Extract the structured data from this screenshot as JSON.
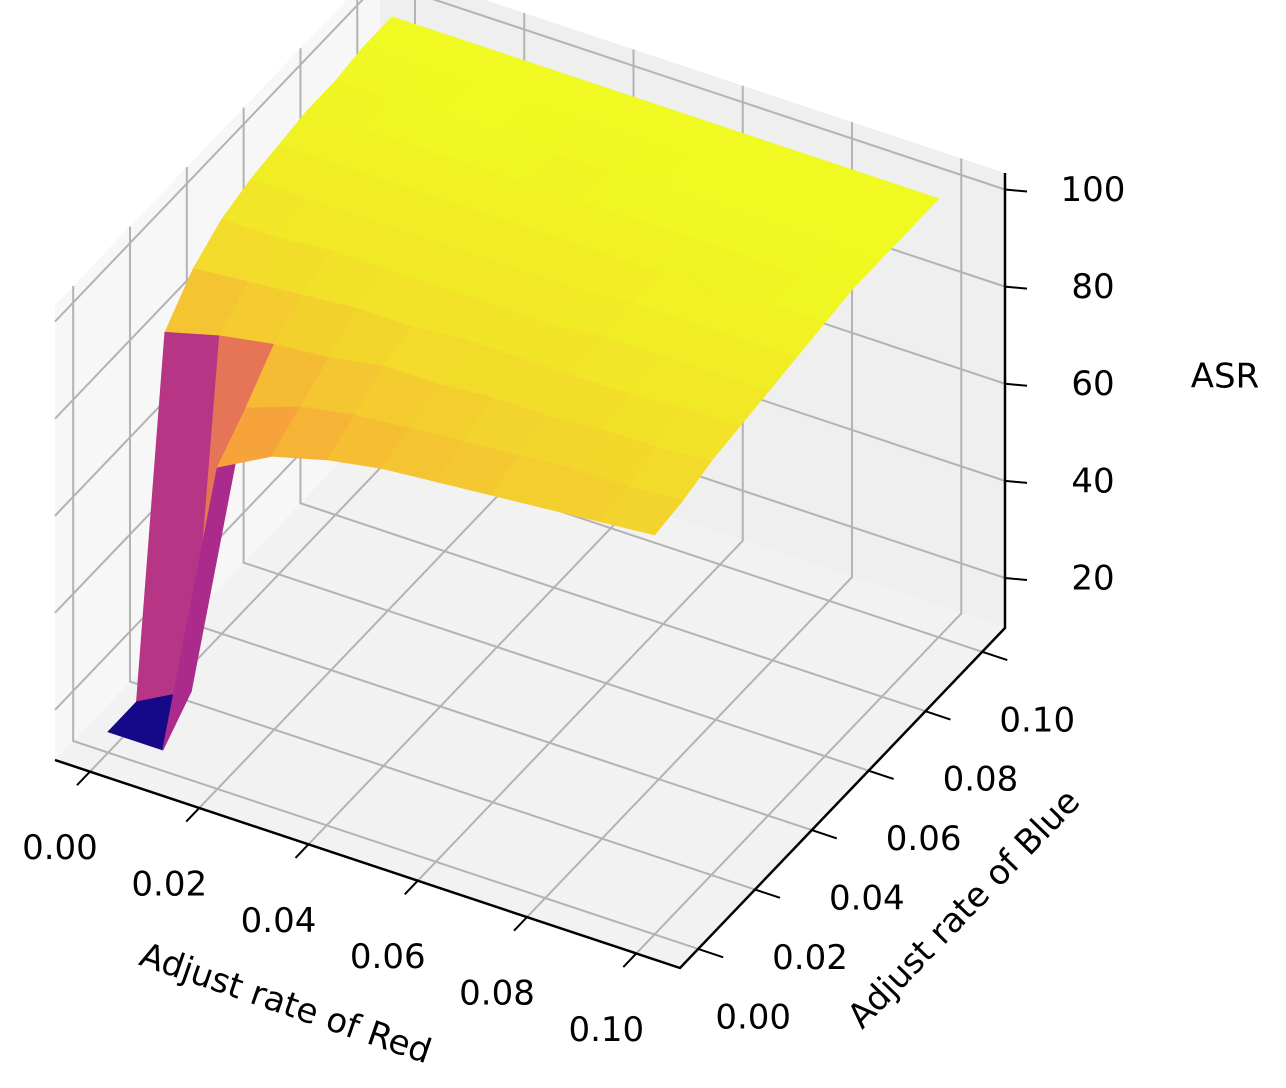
{
  "chart_data": {
    "type": "surface",
    "xlabel": "Adjust rate of Red",
    "ylabel": "Adjust rate of Blue",
    "zlabel": "ASR",
    "colormap": "plasma",
    "grid": true,
    "x": [
      0,
      0.01,
      0.02,
      0.03,
      0.04,
      0.05,
      0.06,
      0.07,
      0.08,
      0.09,
      0.1
    ],
    "y": [
      0,
      0.01,
      0.02,
      0.03,
      0.04,
      0.05,
      0.06,
      0.07,
      0.08,
      0.09,
      0.1
    ],
    "z": [
      [
        14,
        14,
        84,
        91,
        95,
        97,
        98,
        99,
        99,
        100,
        100
      ],
      [
        14,
        20,
        87,
        92,
        95,
        97,
        98,
        99,
        99,
        100,
        100
      ],
      [
        76,
        82,
        89,
        93,
        96,
        97,
        98,
        99,
        100,
        100,
        100
      ],
      [
        82,
        86,
        90,
        94,
        96,
        97,
        98,
        99,
        100,
        100,
        100
      ],
      [
        85,
        88,
        92,
        94,
        96,
        97,
        98,
        99,
        99,
        100,
        100
      ],
      [
        87,
        89,
        92,
        95,
        96,
        97,
        98,
        99,
        99,
        100,
        100
      ],
      [
        88,
        90,
        93,
        95,
        96,
        97,
        98,
        99,
        100,
        100,
        100
      ],
      [
        89,
        91,
        93,
        95,
        97,
        98,
        98,
        99,
        100,
        100,
        100
      ],
      [
        90,
        92,
        94,
        95,
        97,
        98,
        99,
        99,
        100,
        100,
        100
      ],
      [
        91,
        92,
        94,
        96,
        97,
        98,
        99,
        99,
        100,
        100,
        100
      ],
      [
        92,
        93,
        95,
        96,
        97,
        98,
        99,
        100,
        100,
        100,
        100
      ]
    ],
    "xlim": [
      -0.0064,
      0.108
    ],
    "ylim": [
      -0.0064,
      0.108
    ],
    "zlim": [
      9.7,
      103.4
    ],
    "xticks": [
      {
        "value": 0,
        "label": "0.00"
      },
      {
        "value": 0.02,
        "label": "0.02"
      },
      {
        "value": 0.04,
        "label": "0.04"
      },
      {
        "value": 0.06,
        "label": "0.06"
      },
      {
        "value": 0.08,
        "label": "0.08"
      },
      {
        "value": 0.1,
        "label": "0.10"
      }
    ],
    "yticks": [
      {
        "value": 0,
        "label": "0.00"
      },
      {
        "value": 0.02,
        "label": "0.02"
      },
      {
        "value": 0.04,
        "label": "0.04"
      },
      {
        "value": 0.06,
        "label": "0.06"
      },
      {
        "value": 0.08,
        "label": "0.08"
      },
      {
        "value": 0.1,
        "label": "0.10"
      }
    ],
    "zticks": [
      20,
      40,
      60,
      80,
      100
    ]
  }
}
